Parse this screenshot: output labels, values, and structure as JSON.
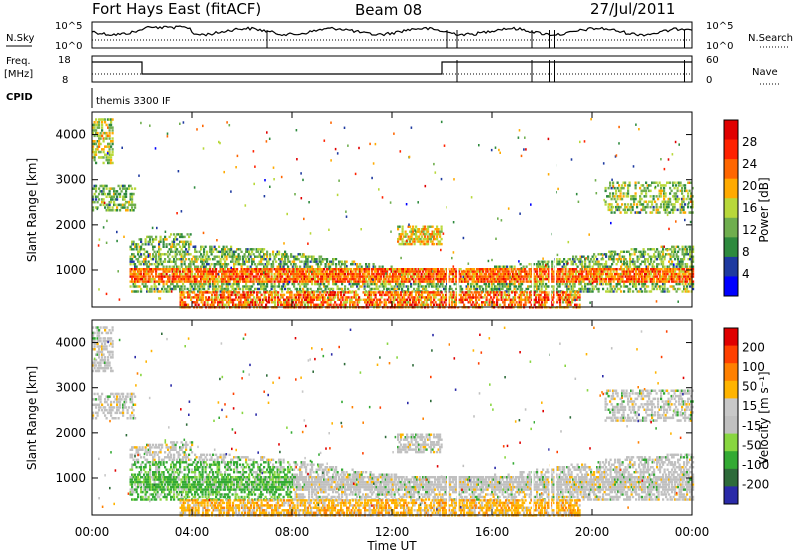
{
  "header": {
    "station": "Fort Hays East (fitACF)",
    "beam": "Beam 08",
    "date": "27/Jul/2011"
  },
  "strip_nsky": {
    "left_label": "N.Sky",
    "left_ticks": [
      "10^5",
      "10^0"
    ],
    "right_label": "N.Search",
    "right_ticks": [
      "10^5",
      "10^0"
    ]
  },
  "strip_freq": {
    "left_label_1": "Freq.",
    "left_label_2": "[MHz]",
    "left_ticks": [
      "18",
      "8"
    ],
    "right_label": "Nave",
    "right_ticks": [
      "60",
      "0"
    ]
  },
  "cpid": {
    "label": "CPID",
    "value": "themis 3300 IF"
  },
  "colors": {
    "power_scale": [
      "#0000ff",
      "#1e3aa0",
      "#2e8a3e",
      "#6fae4e",
      "#b8d83a",
      "#ffaa00",
      "#ff6600",
      "#ff2200",
      "#e00000"
    ],
    "velocity_scale": [
      "#2a2aa8",
      "#2e6b3a",
      "#33aa33",
      "#88d640",
      "#c0c0c0",
      "#c8c8c8",
      "#ffb400",
      "#ff8000",
      "#ff4000",
      "#e00000"
    ]
  },
  "chart_data": [
    {
      "type": "heatmap",
      "panel": "power",
      "ylabel": "Slant Range [km]",
      "colorbar_label": "Power [dB]",
      "colorbar_ticks": [
        "28",
        "24",
        "20",
        "16",
        "12",
        "8",
        "4"
      ],
      "yticks": [
        "4000",
        "3000",
        "2000",
        "1000"
      ],
      "ylim": [
        180,
        4500
      ],
      "xlim_hours": [
        0,
        24
      ]
    },
    {
      "type": "heatmap",
      "panel": "velocity",
      "ylabel": "Slant Range [km]",
      "colorbar_label": "Velocity [m s⁻¹]",
      "colorbar_ticks": [
        "200",
        "100",
        "50",
        "15",
        "-15",
        "-50",
        "-100",
        "-200"
      ],
      "yticks": [
        "4000",
        "3000",
        "2000",
        "1000"
      ],
      "ylim": [
        180,
        4500
      ],
      "xlim_hours": [
        0,
        24
      ]
    }
  ],
  "xaxis": {
    "ticks": [
      "00:00",
      "04:00",
      "08:00",
      "12:00",
      "16:00",
      "20:00",
      "00:00"
    ],
    "label": "Time UT"
  }
}
